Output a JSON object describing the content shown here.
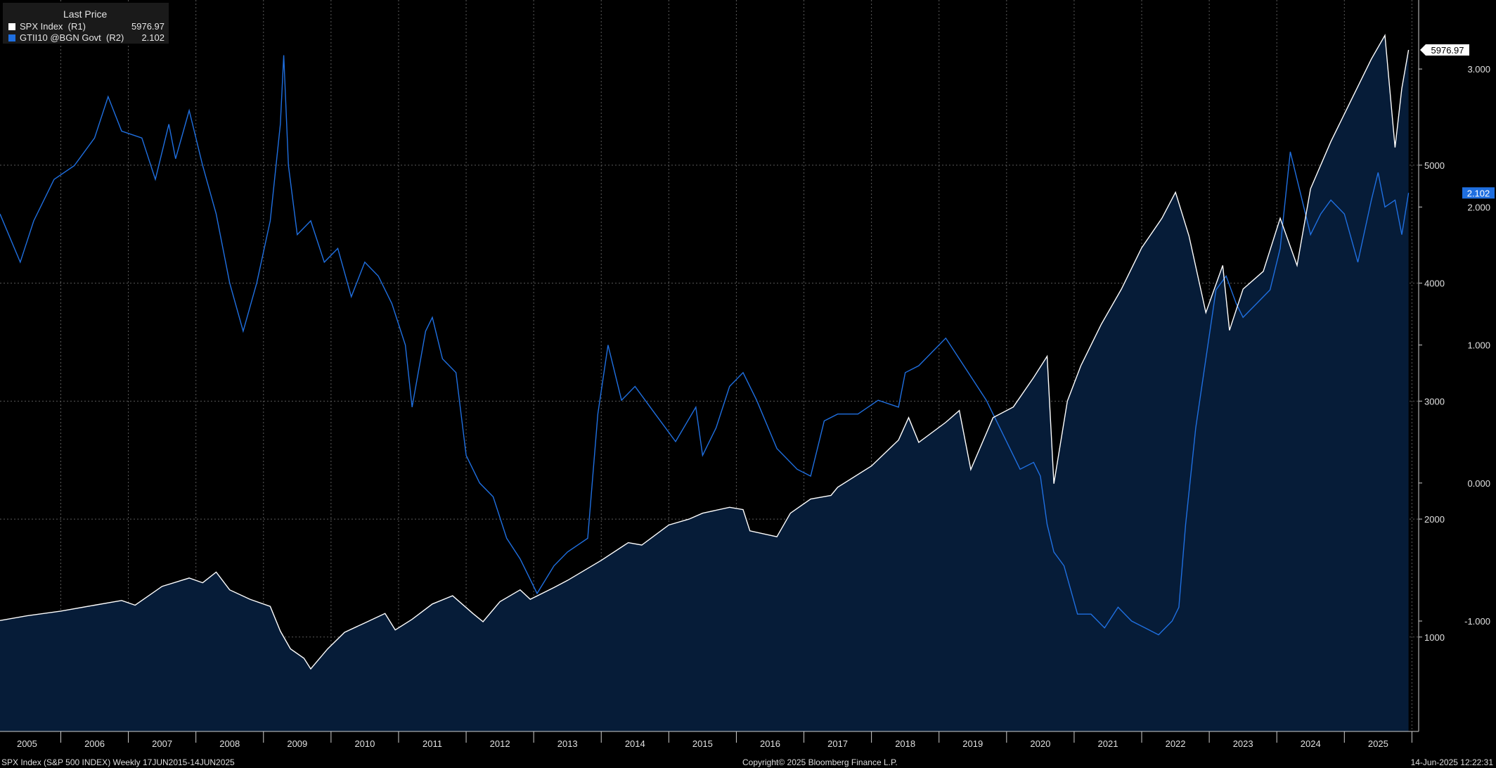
{
  "legend": {
    "header": "Last Price",
    "items": [
      {
        "name": "SPX Index  (R1)",
        "value": "5976.97",
        "color": "#ffffff"
      },
      {
        "name": "GTII10 @BGN Govt  (R2)",
        "value": "2.102",
        "color": "#1f6fe0"
      }
    ]
  },
  "footer": {
    "left": "SPX Index (S&P 500 INDEX)  Weekly 17JUN2015-14JUN2025",
    "center": "Copyright© 2025 Bloomberg Finance L.P.",
    "right": "14-Jun-2025 12:22:31"
  },
  "chart_data": {
    "type": "line",
    "background": "#000000",
    "grid": true,
    "x_ticks": [
      "2005",
      "2006",
      "2007",
      "2008",
      "2009",
      "2010",
      "2011",
      "2012",
      "2013",
      "2014",
      "2015",
      "2016",
      "2017",
      "2018",
      "2019",
      "2020",
      "2021",
      "2022",
      "2023",
      "2024",
      "2025"
    ],
    "x_range": [
      2004.6,
      2025.6
    ],
    "y_axis_r1": {
      "ticks": [
        "1000",
        "2000",
        "3000",
        "4000",
        "5000"
      ],
      "range": [
        200,
        6400
      ]
    },
    "y_axis_r2": {
      "ticks": [
        "-1.000",
        "0.000",
        "1.000",
        "2.000",
        "3.000"
      ],
      "range": [
        -1.8,
        3.5
      ]
    },
    "last_value_labels": {
      "spx": "5976.97",
      "tips": "2.102"
    },
    "series": [
      {
        "name": "SPX Index (R1)",
        "axis": "r1",
        "color": "#ffffff",
        "fill": "#061c38",
        "points": [
          [
            2004.6,
            1140
          ],
          [
            2005.0,
            1180
          ],
          [
            2005.5,
            1220
          ],
          [
            2006.0,
            1270
          ],
          [
            2006.4,
            1310
          ],
          [
            2006.6,
            1270
          ],
          [
            2007.0,
            1430
          ],
          [
            2007.4,
            1500
          ],
          [
            2007.6,
            1460
          ],
          [
            2007.8,
            1550
          ],
          [
            2008.0,
            1400
          ],
          [
            2008.3,
            1320
          ],
          [
            2008.6,
            1260
          ],
          [
            2008.75,
            1050
          ],
          [
            2008.9,
            900
          ],
          [
            2009.1,
            820
          ],
          [
            2009.2,
            730
          ],
          [
            2009.45,
            900
          ],
          [
            2009.7,
            1040
          ],
          [
            2010.0,
            1120
          ],
          [
            2010.3,
            1200
          ],
          [
            2010.45,
            1060
          ],
          [
            2010.7,
            1150
          ],
          [
            2011.0,
            1280
          ],
          [
            2011.3,
            1350
          ],
          [
            2011.6,
            1200
          ],
          [
            2011.75,
            1130
          ],
          [
            2012.0,
            1300
          ],
          [
            2012.3,
            1400
          ],
          [
            2012.45,
            1320
          ],
          [
            2012.8,
            1420
          ],
          [
            2013.0,
            1480
          ],
          [
            2013.5,
            1650
          ],
          [
            2013.9,
            1800
          ],
          [
            2014.1,
            1780
          ],
          [
            2014.5,
            1950
          ],
          [
            2014.8,
            2000
          ],
          [
            2015.0,
            2050
          ],
          [
            2015.4,
            2100
          ],
          [
            2015.6,
            2080
          ],
          [
            2015.7,
            1900
          ],
          [
            2016.1,
            1850
          ],
          [
            2016.3,
            2050
          ],
          [
            2016.6,
            2170
          ],
          [
            2016.9,
            2200
          ],
          [
            2017.0,
            2270
          ],
          [
            2017.5,
            2450
          ],
          [
            2017.9,
            2670
          ],
          [
            2018.05,
            2860
          ],
          [
            2018.2,
            2650
          ],
          [
            2018.6,
            2820
          ],
          [
            2018.8,
            2920
          ],
          [
            2018.97,
            2420
          ],
          [
            2019.3,
            2860
          ],
          [
            2019.6,
            2950
          ],
          [
            2019.9,
            3200
          ],
          [
            2020.1,
            3380
          ],
          [
            2020.2,
            2300
          ],
          [
            2020.4,
            3000
          ],
          [
            2020.6,
            3300
          ],
          [
            2020.9,
            3650
          ],
          [
            2021.2,
            3950
          ],
          [
            2021.5,
            4300
          ],
          [
            2021.8,
            4550
          ],
          [
            2022.0,
            4770
          ],
          [
            2022.2,
            4400
          ],
          [
            2022.45,
            3750
          ],
          [
            2022.7,
            4150
          ],
          [
            2022.8,
            3600
          ],
          [
            2023.0,
            3950
          ],
          [
            2023.3,
            4100
          ],
          [
            2023.55,
            4550
          ],
          [
            2023.8,
            4150
          ],
          [
            2024.0,
            4800
          ],
          [
            2024.3,
            5200
          ],
          [
            2024.6,
            5550
          ],
          [
            2024.9,
            5900
          ],
          [
            2025.1,
            6100
          ],
          [
            2025.25,
            5150
          ],
          [
            2025.35,
            5650
          ],
          [
            2025.45,
            5977
          ]
        ]
      },
      {
        "name": "GTII10 @BGN Govt (R2)",
        "axis": "r2",
        "color": "#1f6fe0",
        "points": [
          [
            2004.6,
            1.95
          ],
          [
            2004.9,
            1.6
          ],
          [
            2005.1,
            1.9
          ],
          [
            2005.4,
            2.2
          ],
          [
            2005.7,
            2.3
          ],
          [
            2006.0,
            2.5
          ],
          [
            2006.2,
            2.8
          ],
          [
            2006.4,
            2.55
          ],
          [
            2006.7,
            2.5
          ],
          [
            2006.9,
            2.2
          ],
          [
            2007.1,
            2.6
          ],
          [
            2007.2,
            2.35
          ],
          [
            2007.4,
            2.7
          ],
          [
            2007.6,
            2.3
          ],
          [
            2007.8,
            1.95
          ],
          [
            2008.0,
            1.45
          ],
          [
            2008.2,
            1.1
          ],
          [
            2008.4,
            1.45
          ],
          [
            2008.6,
            1.9
          ],
          [
            2008.75,
            2.6
          ],
          [
            2008.8,
            3.1
          ],
          [
            2008.87,
            2.3
          ],
          [
            2009.0,
            1.8
          ],
          [
            2009.2,
            1.9
          ],
          [
            2009.4,
            1.6
          ],
          [
            2009.6,
            1.7
          ],
          [
            2009.8,
            1.35
          ],
          [
            2010.0,
            1.6
          ],
          [
            2010.2,
            1.5
          ],
          [
            2010.4,
            1.3
          ],
          [
            2010.6,
            1.0
          ],
          [
            2010.7,
            0.55
          ],
          [
            2010.9,
            1.1
          ],
          [
            2011.0,
            1.2
          ],
          [
            2011.15,
            0.9
          ],
          [
            2011.35,
            0.8
          ],
          [
            2011.5,
            0.2
          ],
          [
            2011.7,
            0.0
          ],
          [
            2011.9,
            -0.1
          ],
          [
            2012.1,
            -0.4
          ],
          [
            2012.3,
            -0.55
          ],
          [
            2012.55,
            -0.8
          ],
          [
            2012.8,
            -0.6
          ],
          [
            2013.0,
            -0.5
          ],
          [
            2013.3,
            -0.4
          ],
          [
            2013.45,
            0.5
          ],
          [
            2013.6,
            1.0
          ],
          [
            2013.8,
            0.6
          ],
          [
            2014.0,
            0.7
          ],
          [
            2014.3,
            0.5
          ],
          [
            2014.6,
            0.3
          ],
          [
            2014.9,
            0.55
          ],
          [
            2015.0,
            0.2
          ],
          [
            2015.2,
            0.4
          ],
          [
            2015.4,
            0.7
          ],
          [
            2015.6,
            0.8
          ],
          [
            2015.8,
            0.6
          ],
          [
            2016.1,
            0.25
          ],
          [
            2016.4,
            0.1
          ],
          [
            2016.6,
            0.05
          ],
          [
            2016.8,
            0.45
          ],
          [
            2017.0,
            0.5
          ],
          [
            2017.3,
            0.5
          ],
          [
            2017.6,
            0.6
          ],
          [
            2017.9,
            0.55
          ],
          [
            2018.0,
            0.8
          ],
          [
            2018.2,
            0.85
          ],
          [
            2018.4,
            0.95
          ],
          [
            2018.6,
            1.05
          ],
          [
            2018.8,
            0.9
          ],
          [
            2019.0,
            0.75
          ],
          [
            2019.2,
            0.6
          ],
          [
            2019.4,
            0.4
          ],
          [
            2019.7,
            0.1
          ],
          [
            2019.9,
            0.15
          ],
          [
            2020.0,
            0.05
          ],
          [
            2020.1,
            -0.3
          ],
          [
            2020.2,
            -0.5
          ],
          [
            2020.35,
            -0.6
          ],
          [
            2020.55,
            -0.95
          ],
          [
            2020.75,
            -0.95
          ],
          [
            2020.95,
            -1.05
          ],
          [
            2021.15,
            -0.9
          ],
          [
            2021.35,
            -1.0
          ],
          [
            2021.55,
            -1.05
          ],
          [
            2021.75,
            -1.1
          ],
          [
            2021.95,
            -1.0
          ],
          [
            2022.05,
            -0.9
          ],
          [
            2022.15,
            -0.3
          ],
          [
            2022.3,
            0.4
          ],
          [
            2022.45,
            0.9
          ],
          [
            2022.6,
            1.4
          ],
          [
            2022.75,
            1.5
          ],
          [
            2022.9,
            1.3
          ],
          [
            2023.0,
            1.2
          ],
          [
            2023.2,
            1.3
          ],
          [
            2023.4,
            1.4
          ],
          [
            2023.55,
            1.7
          ],
          [
            2023.7,
            2.4
          ],
          [
            2023.85,
            2.1
          ],
          [
            2024.0,
            1.8
          ],
          [
            2024.15,
            1.95
          ],
          [
            2024.3,
            2.05
          ],
          [
            2024.5,
            1.95
          ],
          [
            2024.7,
            1.6
          ],
          [
            2024.9,
            2.05
          ],
          [
            2025.0,
            2.25
          ],
          [
            2025.1,
            2.0
          ],
          [
            2025.25,
            2.05
          ],
          [
            2025.35,
            1.8
          ],
          [
            2025.45,
            2.102
          ]
        ]
      }
    ]
  }
}
